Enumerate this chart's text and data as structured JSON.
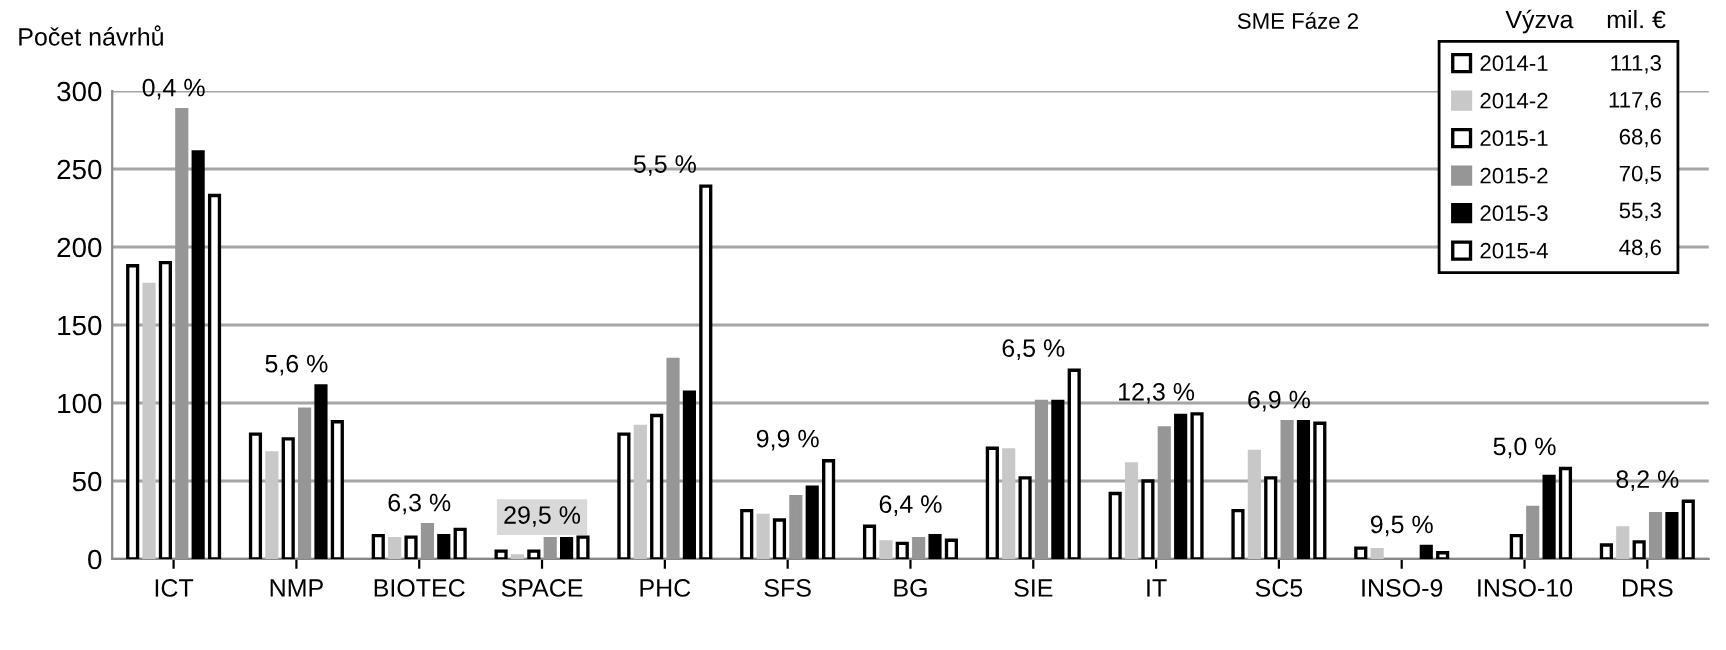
{
  "chart_data": {
    "type": "bar",
    "title": "SME Fáze 2",
    "ylabel": "Počet návrhů",
    "legend_title": "Výzva",
    "categories": [
      "ICT",
      "NMP",
      "BIOTEC",
      "SPACE",
      "PHC",
      "SFS",
      "BG",
      "SIE",
      "IT",
      "SC5",
      "INSO-9",
      "INSO-10",
      "DRS"
    ],
    "series": [
      {
        "name": "2014-1",
        "color": "#ffffff",
        "values": [
          188,
          80,
          15,
          5,
          80,
          31,
          21,
          71,
          42,
          31,
          7,
          null,
          9
        ]
      },
      {
        "name": "2014-2",
        "color": "#c8c8c8",
        "values": [
          176,
          68,
          13,
          2,
          85,
          28,
          11,
          70,
          61,
          69,
          6,
          null,
          20
        ]
      },
      {
        "name": "2015-1",
        "color": "#ffffff",
        "values": [
          190,
          77,
          14,
          5,
          92,
          25,
          10,
          52,
          50,
          52,
          null,
          15,
          11
        ]
      },
      {
        "name": "2015-2",
        "color": "#969696",
        "values": [
          288,
          96,
          22,
          13,
          128,
          40,
          13,
          101,
          84,
          88,
          null,
          33,
          29
        ]
      },
      {
        "name": "2015-3",
        "color": "#000000",
        "values": [
          261,
          111,
          15,
          13,
          107,
          46,
          15,
          101,
          92,
          88,
          8,
          53,
          29
        ]
      },
      {
        "name": "2015-4",
        "color": "#ffffff",
        "values": [
          233,
          88,
          19,
          14,
          239,
          63,
          12,
          121,
          93,
          87,
          4,
          58,
          37
        ]
      }
    ],
    "ylim": [
      0,
      300
    ],
    "yticks": [
      0,
      50,
      100,
      150,
      200,
      250,
      300
    ],
    "grid": "y",
    "legend": "top right",
    "annotations": [
      "0,4 %",
      "5,6 %",
      "6,3 %",
      "29,5 %",
      "5,5 %",
      "9,9 %",
      "6,4 %",
      "6,5 %",
      "12,3 %",
      "6,9 %",
      "9,5 %",
      "5,0 %",
      "8,2 %",
      "mil. €",
      "111,3",
      "117,6",
      "68,6",
      "70,5",
      "55,3",
      "48,6"
    ]
  }
}
